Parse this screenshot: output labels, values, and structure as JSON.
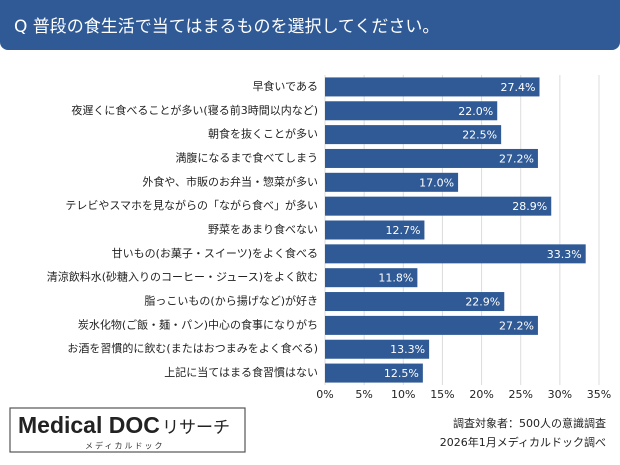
{
  "chart_data": {
    "type": "barh",
    "title": "Q 普段の食生活で当てはまるものを選択してください。",
    "categories": [
      "早食いである",
      "夜遅くに食べることが多い(寝る前3時間以内など)",
      "朝食を抜くことが多い",
      "満腹になるまで食べてしまう",
      "外食や、市販のお弁当・惣菜が多い",
      "テレビやスマホを見ながらの「ながら食べ」が多い",
      "野菜をあまり食べない",
      "甘いもの(お菓子・スイーツ)をよく食べる",
      "清涼飲料水(砂糖入りのコーヒー・ジュース)をよく飲む",
      "脂っこいもの(から揚げなど)が好き",
      "炭水化物(ご飯・麺・パン)中心の食事になりがち",
      "お酒を習慣的に飲む(またはおつまみをよく食べる)",
      "上記に当てはまる食習慣はない"
    ],
    "values": [
      27.4,
      22.0,
      22.5,
      27.2,
      17.0,
      28.9,
      12.7,
      33.3,
      11.8,
      22.9,
      27.2,
      13.3,
      12.5
    ],
    "value_labels": [
      "27.4%",
      "22.0%",
      "22.5%",
      "27.2%",
      "17.0%",
      "28.9%",
      "12.7%",
      "33.3%",
      "11.8%",
      "22.9%",
      "27.2%",
      "13.3%",
      "12.5%"
    ],
    "color": "#2f5a96",
    "xlim": [
      0,
      35
    ],
    "xticks": [
      {
        "value": 0,
        "label": "0%"
      },
      {
        "value": 5,
        "label": "5%"
      },
      {
        "value": 10,
        "label": "10%"
      },
      {
        "value": 15,
        "label": "15%"
      },
      {
        "value": 20,
        "label": "20%"
      },
      {
        "value": 25,
        "label": "25%"
      },
      {
        "value": 30,
        "label": "30%"
      },
      {
        "value": 35,
        "label": "35%"
      }
    ],
    "grid": true
  },
  "footer": {
    "logo": "Medical DOC",
    "logo_suffix": "リサーチ",
    "logo_sub": "メディカルドック",
    "notes": [
      "調査対象者：500人の意識調査",
      "2026年1月メディカルドック調べ"
    ]
  }
}
